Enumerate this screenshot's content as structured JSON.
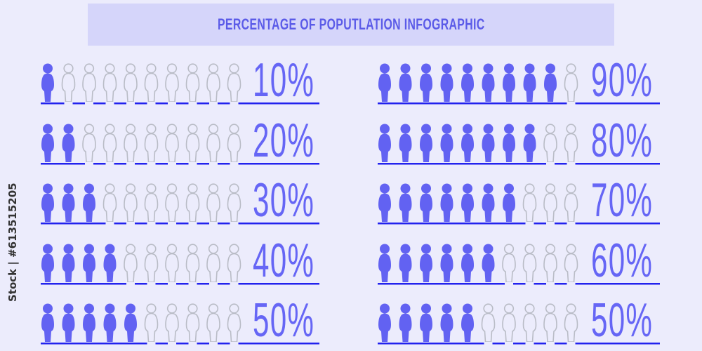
{
  "title": "PERCENTAGE OF POPUTLATION INFOGRAPHIC",
  "watermark_side_text": "Stock | #613515205",
  "colors": {
    "background": "#ececfc",
    "title_bar": "#d5d5fa",
    "title_text": "#5b5be8",
    "filled_figure": "#6262f2",
    "empty_figure_outline": "#b9bcc6",
    "baseline": "#2222ee",
    "percent_text": "#6666f5"
  },
  "figures_per_row": 10,
  "left_rows": [
    {
      "percent": 10,
      "label": "10%"
    },
    {
      "percent": 20,
      "label": "20%"
    },
    {
      "percent": 30,
      "label": "30%"
    },
    {
      "percent": 40,
      "label": "40%"
    },
    {
      "percent": 50,
      "label": "50%"
    }
  ],
  "right_rows": [
    {
      "percent": 90,
      "label": "90%"
    },
    {
      "percent": 80,
      "label": "80%"
    },
    {
      "percent": 70,
      "label": "70%"
    },
    {
      "percent": 60,
      "label": "60%"
    },
    {
      "percent": 50,
      "label": "50%"
    }
  ]
}
